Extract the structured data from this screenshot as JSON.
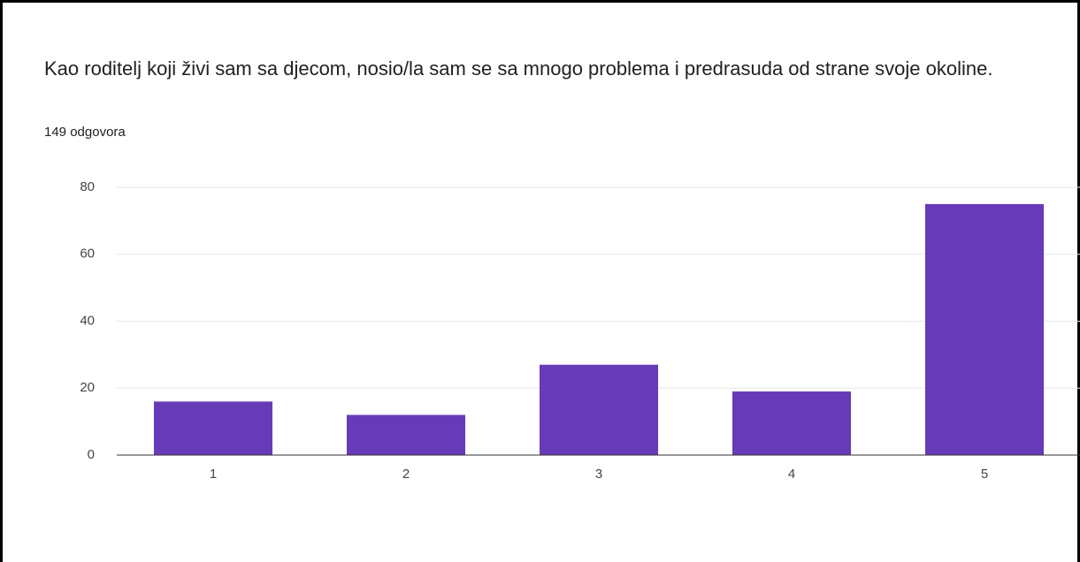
{
  "chart_data": {
    "type": "bar",
    "title": "Kao roditelj koji živi sam sa djecom, nosio/la sam se sa mnogo problema i predrasuda od strane svoje okoline.",
    "subtitle": "149 odgovora",
    "categories": [
      "1",
      "2",
      "3",
      "4",
      "5"
    ],
    "values": [
      16,
      12,
      27,
      19,
      75
    ],
    "color": "#673ab7",
    "ylim": [
      0,
      80
    ],
    "yticks": [
      0,
      20,
      40,
      60,
      80
    ],
    "grid": true
  }
}
